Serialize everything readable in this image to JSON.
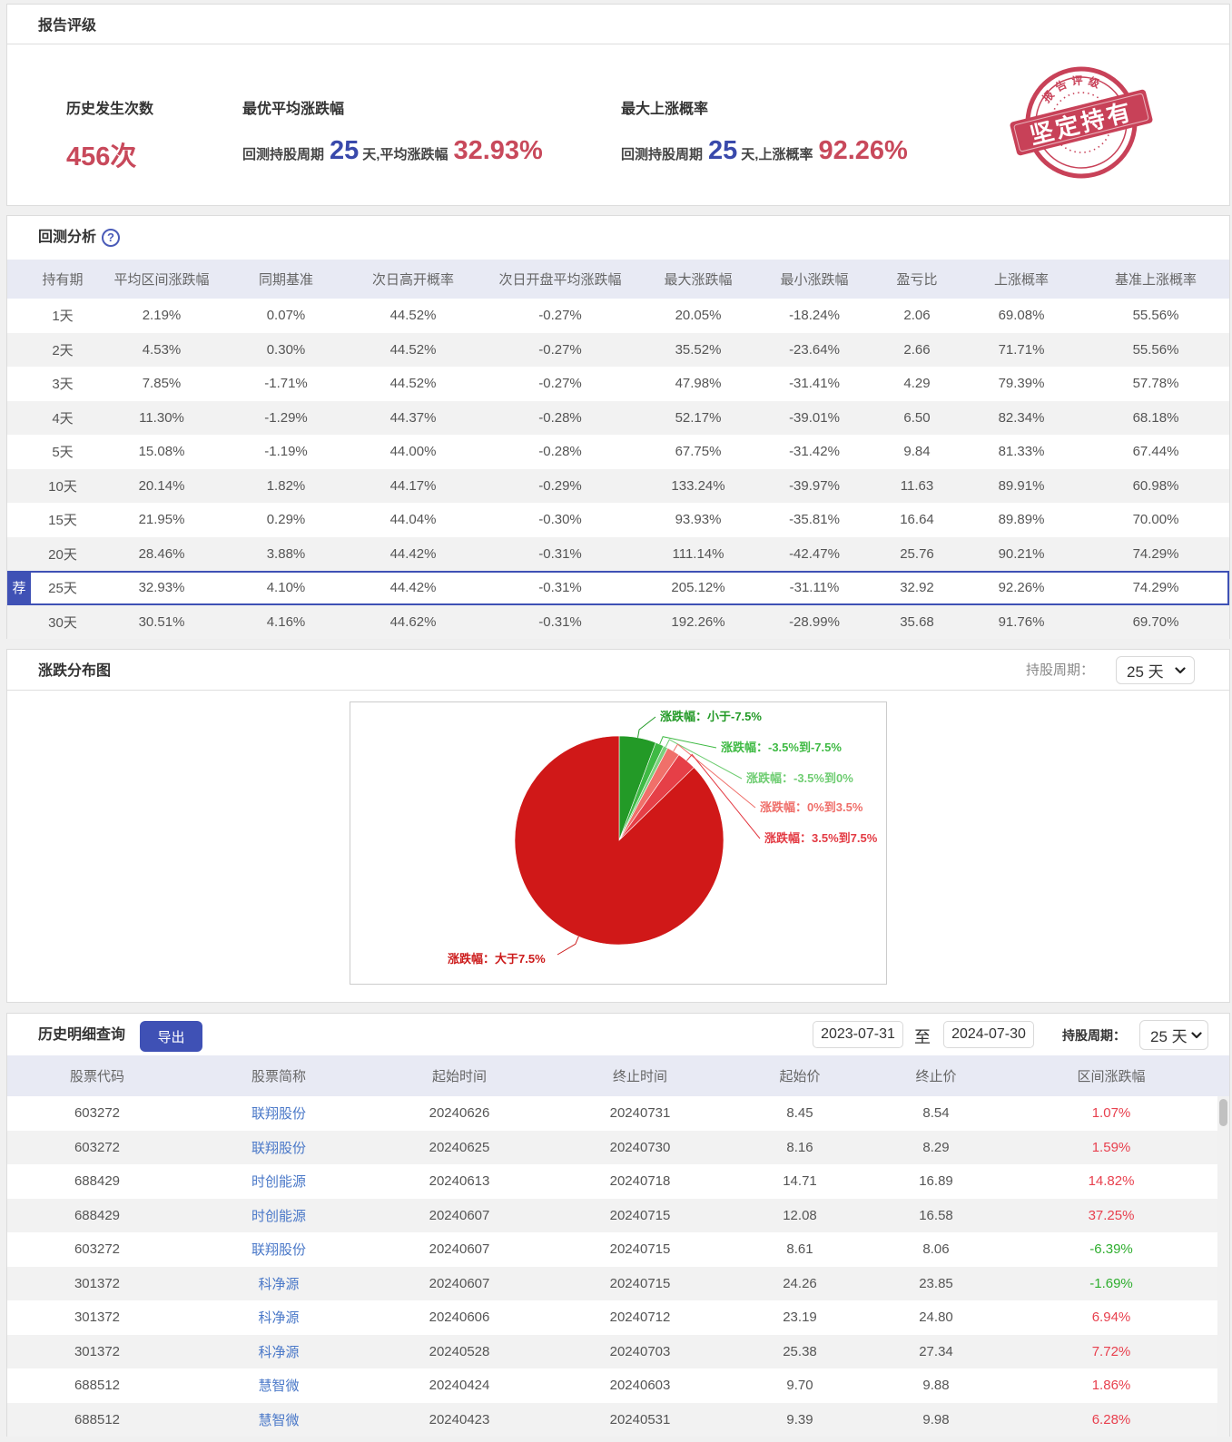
{
  "colors": {
    "accent_blue": "#3f51b5",
    "number_blue": "#3949ab",
    "number_red": "#c8495b",
    "rise_red": "#e8404e",
    "fall_green": "#2fae2f",
    "header_bg": "#e8eaf4",
    "stamp_red": "#c4314a"
  },
  "report_rating": {
    "title": "报告评级",
    "occurrences": {
      "label": "历史发生次数",
      "value": "456次"
    },
    "best_avg_change": {
      "label": "最优平均涨跌幅",
      "prefix": "回测持股周期",
      "days": "25",
      "middle": "天,平均涨跌幅",
      "value": "32.93%"
    },
    "max_up_probability": {
      "label": "最大上涨概率",
      "prefix": "回测持股周期",
      "days": "25",
      "middle": "天,上涨概率",
      "value": "92.26%"
    },
    "stamp": {
      "arc_text": "报告评级",
      "main_text": "坚定持有"
    }
  },
  "backtest": {
    "title": "回测分析",
    "help_icon": "?",
    "recommended_badge": "荐",
    "columns": [
      "持有期",
      "平均区间涨跌幅",
      "同期基准",
      "次日高开概率",
      "次日开盘平均涨跌幅",
      "最大涨跌幅",
      "最小涨跌幅",
      "盈亏比",
      "上涨概率",
      "基准上涨概率"
    ],
    "rows": [
      {
        "period": "1天",
        "avg_change": "2.19%",
        "benchmark": "0.07%",
        "next_open_up_prob": "44.52%",
        "next_open_avg_change": "-0.27%",
        "max_change": "20.05%",
        "min_change": "-18.24%",
        "profit_loss_ratio": "2.06",
        "up_prob": "69.08%",
        "benchmark_up_prob": "55.56%",
        "flag": ""
      },
      {
        "period": "2天",
        "avg_change": "4.53%",
        "benchmark": "0.30%",
        "next_open_up_prob": "44.52%",
        "next_open_avg_change": "-0.27%",
        "max_change": "35.52%",
        "min_change": "-23.64%",
        "profit_loss_ratio": "2.66",
        "up_prob": "71.71%",
        "benchmark_up_prob": "55.56%",
        "flag": ""
      },
      {
        "period": "3天",
        "avg_change": "7.85%",
        "benchmark": "-1.71%",
        "next_open_up_prob": "44.52%",
        "next_open_avg_change": "-0.27%",
        "max_change": "47.98%",
        "min_change": "-31.41%",
        "profit_loss_ratio": "4.29",
        "up_prob": "79.39%",
        "benchmark_up_prob": "57.78%",
        "flag": ""
      },
      {
        "period": "4天",
        "avg_change": "11.30%",
        "benchmark": "-1.29%",
        "next_open_up_prob": "44.37%",
        "next_open_avg_change": "-0.28%",
        "max_change": "52.17%",
        "min_change": "-39.01%",
        "profit_loss_ratio": "6.50",
        "up_prob": "82.34%",
        "benchmark_up_prob": "68.18%",
        "flag": ""
      },
      {
        "period": "5天",
        "avg_change": "15.08%",
        "benchmark": "-1.19%",
        "next_open_up_prob": "44.00%",
        "next_open_avg_change": "-0.28%",
        "max_change": "67.75%",
        "min_change": "-31.42%",
        "profit_loss_ratio": "9.84",
        "up_prob": "81.33%",
        "benchmark_up_prob": "67.44%",
        "flag": ""
      },
      {
        "period": "10天",
        "avg_change": "20.14%",
        "benchmark": "1.82%",
        "next_open_up_prob": "44.17%",
        "next_open_avg_change": "-0.29%",
        "max_change": "133.24%",
        "min_change": "-39.97%",
        "profit_loss_ratio": "11.63",
        "up_prob": "89.91%",
        "benchmark_up_prob": "60.98%",
        "flag": ""
      },
      {
        "period": "15天",
        "avg_change": "21.95%",
        "benchmark": "0.29%",
        "next_open_up_prob": "44.04%",
        "next_open_avg_change": "-0.30%",
        "max_change": "93.93%",
        "min_change": "-35.81%",
        "profit_loss_ratio": "16.64",
        "up_prob": "89.89%",
        "benchmark_up_prob": "70.00%",
        "flag": ""
      },
      {
        "period": "20天",
        "avg_change": "28.46%",
        "benchmark": "3.88%",
        "next_open_up_prob": "44.42%",
        "next_open_avg_change": "-0.31%",
        "max_change": "111.14%",
        "min_change": "-42.47%",
        "profit_loss_ratio": "25.76",
        "up_prob": "90.21%",
        "benchmark_up_prob": "74.29%",
        "flag": ""
      },
      {
        "period": "25天",
        "avg_change": "32.93%",
        "benchmark": "4.10%",
        "next_open_up_prob": "44.42%",
        "next_open_avg_change": "-0.31%",
        "max_change": "205.12%",
        "min_change": "-31.11%",
        "profit_loss_ratio": "32.92",
        "up_prob": "92.26%",
        "benchmark_up_prob": "74.29%",
        "flag": "recommended"
      },
      {
        "period": "30天",
        "avg_change": "30.51%",
        "benchmark": "4.16%",
        "next_open_up_prob": "44.62%",
        "next_open_avg_change": "-0.31%",
        "max_change": "192.26%",
        "min_change": "-28.99%",
        "profit_loss_ratio": "35.68",
        "up_prob": "91.76%",
        "benchmark_up_prob": "69.70%",
        "flag": ""
      }
    ]
  },
  "distribution": {
    "title": "涨跌分布图",
    "period_label": "持股周期：",
    "period_value": "25 天"
  },
  "chart_data": {
    "type": "pie",
    "title": "涨跌分布图",
    "categories": [
      "小于-7.5%",
      "-3.5%到-7.5%",
      "-3.5%到0%",
      "0%到3.5%",
      "3.5%到7.5%",
      "大于7.5%"
    ],
    "labels": [
      "涨跌幅：小于-7.5%",
      "涨跌幅：-3.5%到-7.5%",
      "涨跌幅：-3.5%到0%",
      "涨跌幅：0%到3.5%",
      "涨跌幅：3.5%到7.5%",
      "涨跌幅：大于7.5%"
    ],
    "values": [
      5.7,
      1.3,
      0.7,
      2.0,
      3.0,
      87.3
    ],
    "colors": [
      "#239a27",
      "#3fba44",
      "#7ad27c",
      "#f0706a",
      "#e63f47",
      "#d01818"
    ],
    "label_colors": [
      "#239a27",
      "#3fba44",
      "#6fcd72",
      "#ef6f6a",
      "#e33a43",
      "#cc1a1a"
    ],
    "start_angle": 90,
    "clockwise": true,
    "legend": "none"
  },
  "history": {
    "title": "历史明细查询",
    "export_label": "导出",
    "date_from": "2023-07-31",
    "to_label": "至",
    "date_to": "2024-07-30",
    "period_label": "持股周期：",
    "period_value": "25 天",
    "columns": [
      "股票代码",
      "股票简称",
      "起始时间",
      "终止时间",
      "起始价",
      "终止价",
      "区间涨跌幅"
    ],
    "rows": [
      {
        "code": "603272",
        "name": "联翔股份",
        "start_date": "20240626",
        "end_date": "20240731",
        "start_price": "8.45",
        "end_price": "8.54",
        "change": "1.07%",
        "direction": "up"
      },
      {
        "code": "603272",
        "name": "联翔股份",
        "start_date": "20240625",
        "end_date": "20240730",
        "start_price": "8.16",
        "end_price": "8.29",
        "change": "1.59%",
        "direction": "up"
      },
      {
        "code": "688429",
        "name": "时创能源",
        "start_date": "20240613",
        "end_date": "20240718",
        "start_price": "14.71",
        "end_price": "16.89",
        "change": "14.82%",
        "direction": "up"
      },
      {
        "code": "688429",
        "name": "时创能源",
        "start_date": "20240607",
        "end_date": "20240715",
        "start_price": "12.08",
        "end_price": "16.58",
        "change": "37.25%",
        "direction": "up"
      },
      {
        "code": "603272",
        "name": "联翔股份",
        "start_date": "20240607",
        "end_date": "20240715",
        "start_price": "8.61",
        "end_price": "8.06",
        "change": "-6.39%",
        "direction": "down"
      },
      {
        "code": "301372",
        "name": "科净源",
        "start_date": "20240607",
        "end_date": "20240715",
        "start_price": "24.26",
        "end_price": "23.85",
        "change": "-1.69%",
        "direction": "down"
      },
      {
        "code": "301372",
        "name": "科净源",
        "start_date": "20240606",
        "end_date": "20240712",
        "start_price": "23.19",
        "end_price": "24.80",
        "change": "6.94%",
        "direction": "up"
      },
      {
        "code": "301372",
        "name": "科净源",
        "start_date": "20240528",
        "end_date": "20240703",
        "start_price": "25.38",
        "end_price": "27.34",
        "change": "7.72%",
        "direction": "up"
      },
      {
        "code": "688512",
        "name": "慧智微",
        "start_date": "20240424",
        "end_date": "20240603",
        "start_price": "9.70",
        "end_price": "9.88",
        "change": "1.86%",
        "direction": "up"
      },
      {
        "code": "688512",
        "name": "慧智微",
        "start_date": "20240423",
        "end_date": "20240531",
        "start_price": "9.39",
        "end_price": "9.98",
        "change": "6.28%",
        "direction": "up"
      }
    ]
  }
}
